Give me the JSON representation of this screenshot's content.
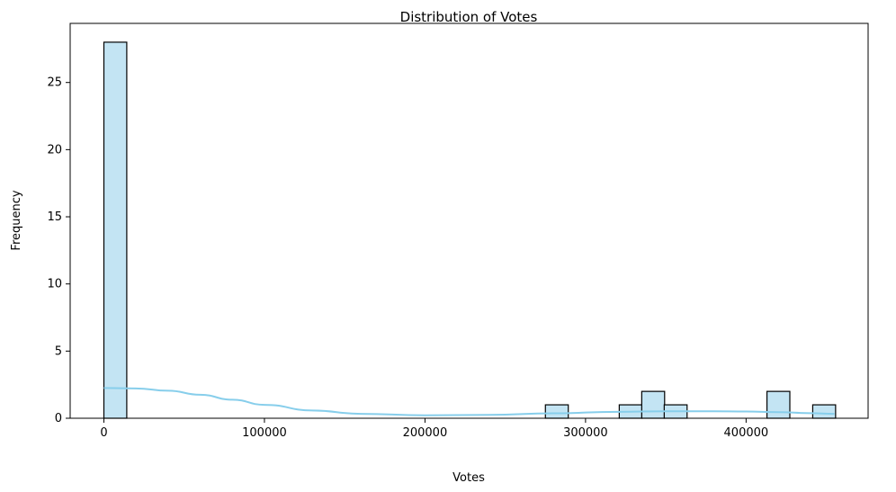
{
  "chart_data": {
    "type": "bar",
    "title": "Distribution of Votes",
    "xlabel": "Votes",
    "ylabel": "Frequency",
    "xlim": [
      -21000,
      476000
    ],
    "ylim": [
      0,
      29.4
    ],
    "xticks": [
      0,
      100000,
      200000,
      300000,
      400000
    ],
    "yticks": [
      0,
      5,
      10,
      15,
      20,
      25
    ],
    "bin_width": 14250,
    "bins": [
      {
        "start": 0,
        "count": 28
      },
      {
        "start": 14250,
        "count": 0
      },
      {
        "start": 28500,
        "count": 0
      },
      {
        "start": 42750,
        "count": 0
      },
      {
        "start": 57000,
        "count": 0
      },
      {
        "start": 71250,
        "count": 0
      },
      {
        "start": 85500,
        "count": 0
      },
      {
        "start": 99750,
        "count": 0
      },
      {
        "start": 114000,
        "count": 0
      },
      {
        "start": 128250,
        "count": 0
      },
      {
        "start": 142500,
        "count": 0
      },
      {
        "start": 156750,
        "count": 0
      },
      {
        "start": 171000,
        "count": 0
      },
      {
        "start": 185250,
        "count": 0
      },
      {
        "start": 199500,
        "count": 0
      },
      {
        "start": 213750,
        "count": 0
      },
      {
        "start": 228000,
        "count": 0
      },
      {
        "start": 242250,
        "count": 0
      },
      {
        "start": 256500,
        "count": 0
      },
      {
        "start": 275000,
        "count": 1
      },
      {
        "start": 321000,
        "count": 1
      },
      {
        "start": 335000,
        "count": 2
      },
      {
        "start": 349000,
        "count": 1
      },
      {
        "start": 413000,
        "count": 2
      },
      {
        "start": 441500,
        "count": 1
      }
    ],
    "kde": {
      "x": [
        0,
        20000,
        40000,
        60000,
        80000,
        100000,
        130000,
        160000,
        200000,
        240000,
        280000,
        320000,
        350000,
        380000,
        400000,
        420000,
        440000,
        455000
      ],
      "y": [
        2.25,
        2.22,
        2.05,
        1.75,
        1.38,
        1.0,
        0.58,
        0.33,
        0.22,
        0.25,
        0.37,
        0.48,
        0.52,
        0.52,
        0.5,
        0.45,
        0.38,
        0.33
      ]
    },
    "bar_color": "#c3e4f3",
    "bar_edge_color": "#000000",
    "kde_color": "#87ceeb",
    "grid": false
  }
}
